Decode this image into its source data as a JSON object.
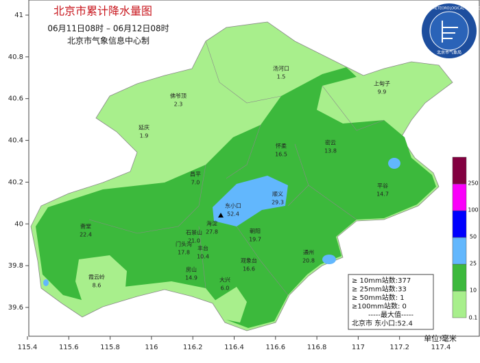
{
  "header": {
    "title": "北京市累计降水量图",
    "period": "06月11日08时 – 06月12日08时",
    "producer": "北京市气象信息中心制",
    "logo_en": "BEIJING METEOROLOGICAL SERVICE",
    "logo_cn": "北京市气象局"
  },
  "axes": {
    "xticks": [
      115.4,
      115.6,
      115.8,
      116,
      116.2,
      116.4,
      116.6,
      116.8,
      117,
      117.2,
      117.4
    ],
    "yticks": [
      39.6,
      39.8,
      40,
      40.2,
      40.4,
      40.6,
      40.8,
      41
    ]
  },
  "stations": [
    {
      "name": "汤河口",
      "value": "1.5"
    },
    {
      "name": "上甸子",
      "value": "9.9"
    },
    {
      "name": "佛爷顶",
      "value": "2.3"
    },
    {
      "name": "延庆",
      "value": "1.9"
    },
    {
      "name": "怀柔",
      "value": "16.5"
    },
    {
      "name": "密云",
      "value": "13.8"
    },
    {
      "name": "昌平",
      "value": "7.0"
    },
    {
      "name": "顺义",
      "value": "29.3"
    },
    {
      "name": "平谷",
      "value": "14.7"
    },
    {
      "name": "东小口",
      "value": "52.4"
    },
    {
      "name": "斋堂",
      "value": "22.4"
    },
    {
      "name": "海淀",
      "value": "27.8"
    },
    {
      "name": "石景山",
      "value": "21.0"
    },
    {
      "name": "朝阳",
      "value": "19.7"
    },
    {
      "name": "门头沟",
      "value": "17.8"
    },
    {
      "name": "丰台",
      "value": "10.4"
    },
    {
      "name": "观象台",
      "value": "16.6"
    },
    {
      "name": "通州",
      "value": "20.8"
    },
    {
      "name": "房山",
      "value": "14.9"
    },
    {
      "name": "霞云岭",
      "value": "8.6"
    },
    {
      "name": "大兴",
      "value": "6.0"
    }
  ],
  "legend": {
    "levels": [
      "0.1",
      "10",
      "25",
      "50",
      "100",
      "250"
    ],
    "colors": [
      "#a8ef8c",
      "#3cb93c",
      "#62b7fd",
      "#0000fe",
      "#fa00fa",
      "#820040"
    ]
  },
  "stats": [
    "≥ 10mm站数:377",
    "≥ 25mm站数:33",
    "≥ 50mm站数: 1",
    "≥100mm站数: 0",
    "-----最大值-----",
    "北京市 东小口:52.4"
  ],
  "unit": "单位:毫米"
}
